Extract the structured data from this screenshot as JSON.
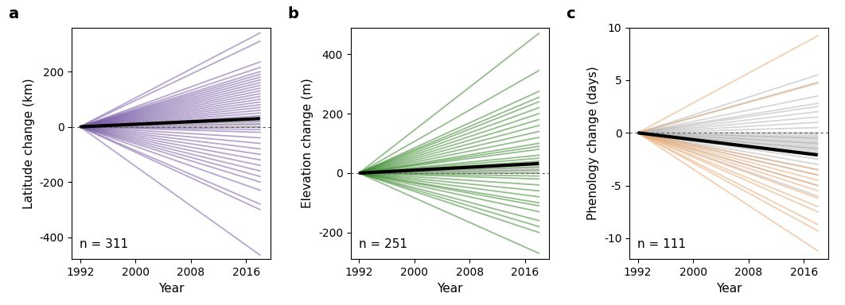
{
  "chart_data": [
    {
      "type": "line",
      "title": "a",
      "x_label": "Year",
      "y_label": "Latitude change (km)",
      "annotations": [
        "n = 311"
      ],
      "color": "#7b5ea7",
      "x": [
        1992,
        2018
      ],
      "xlim": [
        1990.8,
        2019.5
      ],
      "xticks": [
        1992,
        2000,
        2008,
        2016
      ],
      "ylim": [
        -480,
        360
      ],
      "yticks": [
        -400,
        -200,
        0,
        200
      ],
      "series": [
        {
          "values": [
            0,
            340
          ]
        },
        {
          "values": [
            0,
            310
          ]
        },
        {
          "values": [
            0,
            235
          ]
        },
        {
          "values": [
            0,
            215
          ]
        },
        {
          "values": [
            0,
            200
          ]
        },
        {
          "values": [
            0,
            190
          ]
        },
        {
          "values": [
            0,
            180
          ]
        },
        {
          "values": [
            0,
            170
          ]
        },
        {
          "values": [
            0,
            160
          ]
        },
        {
          "values": [
            0,
            150
          ]
        },
        {
          "values": [
            0,
            140
          ]
        },
        {
          "values": [
            0,
            130
          ]
        },
        {
          "values": [
            0,
            120
          ]
        },
        {
          "values": [
            0,
            110
          ]
        },
        {
          "values": [
            0,
            100
          ]
        },
        {
          "values": [
            0,
            90
          ]
        },
        {
          "values": [
            0,
            80
          ]
        },
        {
          "values": [
            0,
            70
          ]
        },
        {
          "values": [
            0,
            60
          ]
        },
        {
          "values": [
            0,
            50
          ]
        },
        {
          "values": [
            0,
            40
          ]
        },
        {
          "values": [
            0,
            30
          ]
        },
        {
          "values": [
            0,
            20
          ]
        },
        {
          "values": [
            0,
            10
          ]
        },
        {
          "values": [
            0,
            0
          ]
        },
        {
          "values": [
            0,
            -10
          ]
        },
        {
          "values": [
            0,
            -20
          ]
        },
        {
          "values": [
            0,
            -40
          ]
        },
        {
          "values": [
            0,
            -60
          ]
        },
        {
          "values": [
            0,
            -80
          ]
        },
        {
          "values": [
            0,
            -100
          ]
        },
        {
          "values": [
            0,
            -120
          ]
        },
        {
          "values": [
            0,
            -140
          ]
        },
        {
          "values": [
            0,
            -160
          ]
        },
        {
          "values": [
            0,
            -180
          ]
        },
        {
          "values": [
            0,
            -200
          ]
        },
        {
          "values": [
            0,
            -230
          ]
        },
        {
          "values": [
            0,
            -280
          ]
        },
        {
          "values": [
            0,
            -300
          ]
        },
        {
          "values": [
            0,
            -465
          ]
        },
        {
          "values": [
            0,
            30
          ],
          "color": "#000000"
        }
      ]
    },
    {
      "type": "line",
      "title": "b",
      "x_label": "Year",
      "y_label": "Elevation change (m)",
      "annotations": [
        "n = 251"
      ],
      "color": "#3a8a2e",
      "x": [
        1992,
        2018
      ],
      "xlim": [
        1990.8,
        2019.5
      ],
      "xticks": [
        1992,
        2000,
        2008,
        2016
      ],
      "ylim": [
        -290,
        490
      ],
      "yticks": [
        -200,
        0,
        200,
        400
      ],
      "series": [
        {
          "values": [
            0,
            470
          ]
        },
        {
          "values": [
            0,
            345
          ]
        },
        {
          "values": [
            0,
            275
          ]
        },
        {
          "values": [
            0,
            255
          ]
        },
        {
          "values": [
            0,
            240
          ]
        },
        {
          "values": [
            0,
            220
          ]
        },
        {
          "values": [
            0,
            200
          ]
        },
        {
          "values": [
            0,
            180
          ]
        },
        {
          "values": [
            0,
            160
          ]
        },
        {
          "values": [
            0,
            140
          ]
        },
        {
          "values": [
            0,
            120
          ]
        },
        {
          "values": [
            0,
            100
          ]
        },
        {
          "values": [
            0,
            90
          ]
        },
        {
          "values": [
            0,
            80
          ]
        },
        {
          "values": [
            0,
            60
          ]
        },
        {
          "values": [
            0,
            50
          ]
        },
        {
          "values": [
            0,
            40
          ]
        },
        {
          "values": [
            0,
            30
          ]
        },
        {
          "values": [
            0,
            20
          ]
        },
        {
          "values": [
            0,
            10
          ]
        },
        {
          "values": [
            0,
            0
          ]
        },
        {
          "values": [
            0,
            -10
          ]
        },
        {
          "values": [
            0,
            -20
          ]
        },
        {
          "values": [
            0,
            -40
          ]
        },
        {
          "values": [
            0,
            -60
          ]
        },
        {
          "values": [
            0,
            -80
          ]
        },
        {
          "values": [
            0,
            -100
          ]
        },
        {
          "values": [
            0,
            -110
          ]
        },
        {
          "values": [
            0,
            -130
          ]
        },
        {
          "values": [
            0,
            -160
          ]
        },
        {
          "values": [
            0,
            -180
          ]
        },
        {
          "values": [
            0,
            -200
          ]
        },
        {
          "values": [
            0,
            -270
          ]
        },
        {
          "values": [
            0,
            32
          ],
          "color": "#000000"
        }
      ]
    },
    {
      "type": "line",
      "title": "c",
      "x_label": "Year",
      "y_label": "Phenology change (days)",
      "annotations": [
        "n = 111"
      ],
      "color": "#b5b5b5",
      "x": [
        1992,
        2018
      ],
      "xlim": [
        1990.8,
        2019.5
      ],
      "xticks": [
        1992,
        2000,
        2008,
        2016
      ],
      "ylim": [
        -12,
        10
      ],
      "yticks": [
        -10,
        -5,
        0,
        5,
        10
      ],
      "series": [
        {
          "values": [
            0,
            5.5
          ]
        },
        {
          "values": [
            0,
            4.8
          ]
        },
        {
          "values": [
            0,
            3.5
          ]
        },
        {
          "values": [
            0,
            2.8
          ]
        },
        {
          "values": [
            0,
            2.5
          ]
        },
        {
          "values": [
            0,
            2
          ]
        },
        {
          "values": [
            0,
            1.5
          ]
        },
        {
          "values": [
            0,
            1
          ]
        },
        {
          "values": [
            0,
            0.5
          ]
        },
        {
          "values": [
            0,
            0
          ]
        },
        {
          "values": [
            0,
            -0.5
          ]
        },
        {
          "values": [
            0,
            -1
          ]
        },
        {
          "values": [
            0,
            -1.5
          ]
        },
        {
          "values": [
            0,
            -2
          ]
        },
        {
          "values": [
            0,
            -2.5
          ]
        },
        {
          "values": [
            0,
            -3
          ]
        },
        {
          "values": [
            0,
            -3.5
          ]
        },
        {
          "values": [
            0,
            -4
          ]
        },
        {
          "values": [
            0,
            -5
          ]
        },
        {
          "values": [
            0,
            -6
          ]
        },
        {
          "values": [
            0,
            9.2
          ],
          "color": "#e8a870"
        },
        {
          "values": [
            0,
            4.7
          ],
          "color": "#e8a870"
        },
        {
          "values": [
            0,
            -3.5
          ],
          "color": "#e8a870"
        },
        {
          "values": [
            0,
            -4
          ],
          "color": "#e8a870"
        },
        {
          "values": [
            0,
            -4.5
          ],
          "color": "#e8a870"
        },
        {
          "values": [
            0,
            -5
          ],
          "color": "#e8a870"
        },
        {
          "values": [
            0,
            -5.5
          ],
          "color": "#e8a870"
        },
        {
          "values": [
            0,
            -6.2
          ],
          "color": "#e8a870"
        },
        {
          "values": [
            0,
            -7
          ],
          "color": "#e8a870"
        },
        {
          "values": [
            0,
            -7.5
          ],
          "color": "#e8a870"
        },
        {
          "values": [
            0,
            -8.7
          ],
          "color": "#e8a870"
        },
        {
          "values": [
            0,
            -9.3
          ],
          "color": "#e8a870"
        },
        {
          "values": [
            0,
            -11.2
          ],
          "color": "#e8a870"
        },
        {
          "values": [
            0,
            -2.1
          ],
          "color": "#000000"
        }
      ]
    }
  ]
}
